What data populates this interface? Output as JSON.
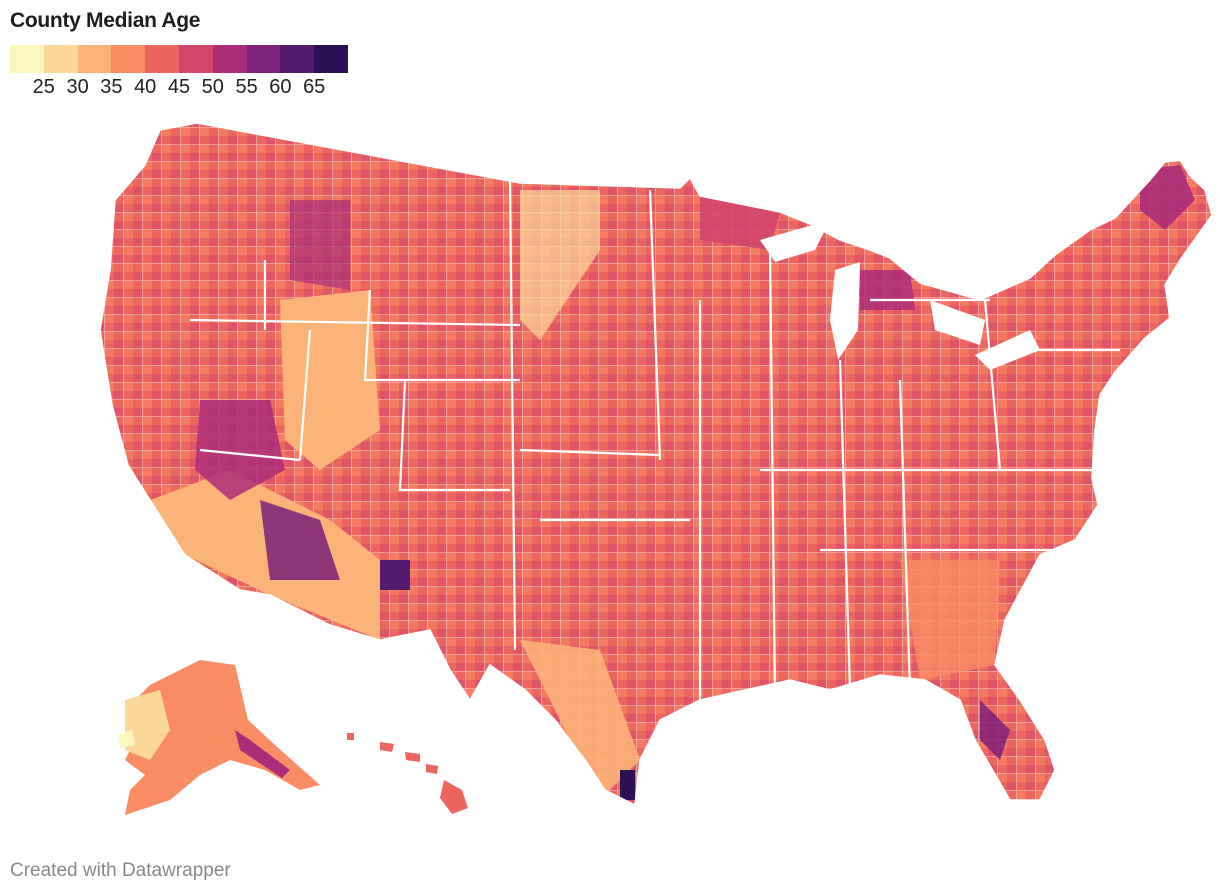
{
  "header": {
    "title": "County Median Age"
  },
  "legend": {
    "colors": [
      "#fcf8bd",
      "#fcd898",
      "#fcb378",
      "#fa8c63",
      "#ec665f",
      "#d4456b",
      "#ab2d7a",
      "#7e1f7a",
      "#531b6e",
      "#2c0f55"
    ],
    "ticks": [
      "25",
      "30",
      "35",
      "40",
      "45",
      "50",
      "55",
      "60",
      "65"
    ]
  },
  "map": {
    "regions": [
      {
        "name": "contiguous-us",
        "color": "#ec665f"
      },
      {
        "name": "alaska",
        "color": "#fa8c63"
      },
      {
        "name": "hawaii",
        "color": "#ec665f"
      },
      {
        "name": "florida",
        "color": "#d4456b"
      }
    ]
  },
  "footer": {
    "credit": "Created with Datawrapper"
  }
}
